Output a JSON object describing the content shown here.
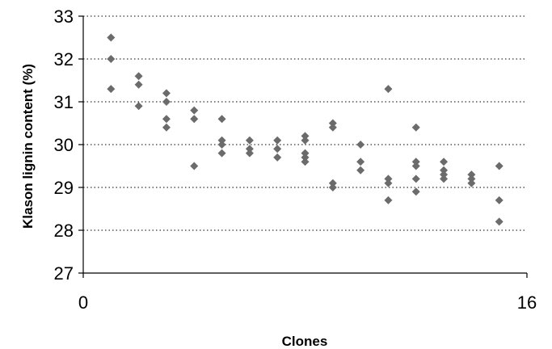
{
  "chart_data": {
    "type": "scatter",
    "title": "",
    "xlabel": "Clones",
    "ylabel": "Klason lignin content (%)",
    "xlim": [
      0,
      16
    ],
    "ylim": [
      27,
      33
    ],
    "x_ticks": [
      0,
      16
    ],
    "y_ticks": [
      27,
      28,
      29,
      30,
      31,
      32,
      33
    ],
    "grid": "horizontal dotted",
    "marker": "diamond",
    "colors": {
      "marker": "#6b6b6b",
      "axis": "#000000",
      "grid": "#000000"
    },
    "series": [
      {
        "x": [
          1,
          1,
          1,
          2,
          2,
          2,
          3,
          3,
          3,
          3,
          4,
          4,
          4,
          5,
          5,
          5,
          5,
          6,
          6,
          6,
          7,
          7,
          7,
          8,
          8,
          8,
          8,
          8,
          9,
          9,
          9,
          9,
          10,
          10,
          10,
          11,
          11,
          11,
          11,
          12,
          12,
          12,
          12,
          12,
          13,
          13,
          13,
          13,
          14,
          14,
          14,
          15,
          15,
          15
        ],
        "y": [
          32.5,
          32.0,
          31.3,
          31.6,
          31.4,
          30.9,
          31.2,
          31.0,
          30.6,
          30.4,
          30.8,
          30.6,
          29.5,
          30.6,
          30.1,
          30.0,
          29.8,
          30.1,
          29.9,
          29.8,
          30.1,
          29.9,
          29.7,
          30.2,
          30.1,
          29.8,
          29.7,
          29.6,
          30.5,
          30.4,
          29.1,
          29.0,
          30.0,
          29.6,
          29.4,
          31.3,
          29.2,
          29.1,
          28.7,
          30.4,
          29.6,
          29.5,
          29.2,
          28.9,
          29.6,
          29.4,
          29.3,
          29.2,
          29.3,
          29.2,
          29.1,
          29.5,
          28.7,
          28.2
        ]
      }
    ]
  }
}
